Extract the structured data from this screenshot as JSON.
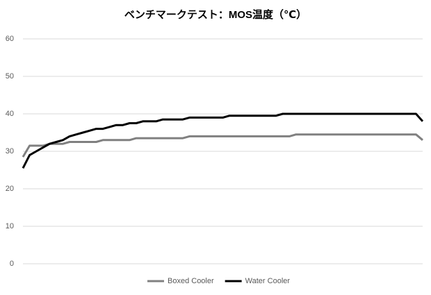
{
  "chart_data": {
    "type": "line",
    "title": "ベンチマークテスト：MOS温度（℃）",
    "x": [
      0,
      1,
      2,
      3,
      4,
      5,
      6,
      7,
      8,
      9,
      10,
      11,
      12,
      13,
      14,
      15,
      16,
      17,
      18,
      19,
      20,
      21,
      22,
      23,
      24,
      25,
      26,
      27,
      28,
      29,
      30,
      31,
      32,
      33,
      34,
      35,
      36,
      37,
      38,
      39,
      40,
      41,
      42,
      43,
      44,
      45,
      46,
      47,
      48,
      49,
      50,
      51,
      52,
      53,
      54,
      55,
      56,
      57,
      58,
      59,
      60
    ],
    "xlim": [
      0,
      60
    ],
    "series": [
      {
        "name": "Boxed Cooler",
        "color": "#808080",
        "values": [
          28.5,
          31.5,
          31.5,
          31.5,
          32,
          32,
          32,
          32.5,
          32.5,
          32.5,
          32.5,
          32.5,
          33,
          33,
          33,
          33,
          33,
          33.5,
          33.5,
          33.5,
          33.5,
          33.5,
          33.5,
          33.5,
          33.5,
          34,
          34,
          34,
          34,
          34,
          34,
          34,
          34,
          34,
          34,
          34,
          34,
          34,
          34,
          34,
          34,
          34.5,
          34.5,
          34.5,
          34.5,
          34.5,
          34.5,
          34.5,
          34.5,
          34.5,
          34.5,
          34.5,
          34.5,
          34.5,
          34.5,
          34.5,
          34.5,
          34.5,
          34.5,
          34.5,
          33
        ]
      },
      {
        "name": "Water Cooler",
        "color": "#000000",
        "values": [
          25.5,
          29,
          30,
          31,
          32,
          32.5,
          33,
          34,
          34.5,
          35,
          35.5,
          36,
          36,
          36.5,
          37,
          37,
          37.5,
          37.5,
          38,
          38,
          38,
          38.5,
          38.5,
          38.5,
          38.5,
          39,
          39,
          39,
          39,
          39,
          39,
          39.5,
          39.5,
          39.5,
          39.5,
          39.5,
          39.5,
          39.5,
          39.5,
          40,
          40,
          40,
          40,
          40,
          40,
          40,
          40,
          40,
          40,
          40,
          40,
          40,
          40,
          40,
          40,
          40,
          40,
          40,
          40,
          40,
          38
        ]
      }
    ],
    "ylim": [
      0,
      60
    ],
    "yticks": [
      0,
      10,
      20,
      30,
      40,
      50,
      60
    ],
    "grid": true,
    "legend": "bottom"
  }
}
